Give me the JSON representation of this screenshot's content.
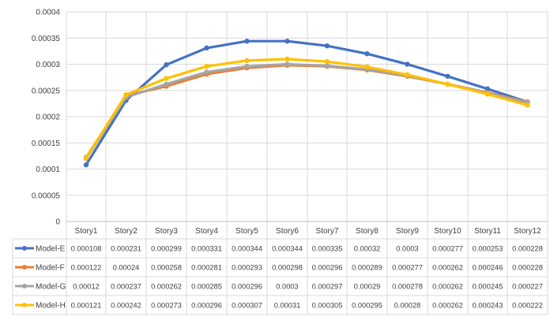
{
  "chart_data": {
    "type": "line",
    "title": "",
    "xlabel": "",
    "ylabel": "",
    "ylim": [
      0,
      0.0004
    ],
    "y_ticks": [
      "0",
      "0.00005",
      "0.0001",
      "0.00015",
      "0.0002",
      "0.00025",
      "0.0003",
      "0.00035",
      "0.0004"
    ],
    "grid": true,
    "legend": "data-table-left",
    "categories": [
      "Story1",
      "Story2",
      "Story3",
      "Story4",
      "Story5",
      "Story6",
      "Story7",
      "Story8",
      "Story9",
      "Story10",
      "Story11",
      "Story12"
    ],
    "series": [
      {
        "name": "Model-E",
        "color": "#4472C4",
        "values": [
          0.000108,
          0.000231,
          0.000299,
          0.000331,
          0.000344,
          0.000344,
          0.000335,
          0.00032,
          0.0003,
          0.000277,
          0.000253,
          0.000228
        ],
        "labels": [
          "0.000108",
          "0.000231",
          "0.000299",
          "0.000331",
          "0.000344",
          "0.000344",
          "0.000335",
          "0.00032",
          "0.0003",
          "0.000277",
          "0.000253",
          "0.000228"
        ]
      },
      {
        "name": "Model-F",
        "color": "#ED7D31",
        "values": [
          0.000122,
          0.00024,
          0.000258,
          0.000281,
          0.000293,
          0.000298,
          0.000296,
          0.000289,
          0.000277,
          0.000262,
          0.000246,
          0.000228
        ],
        "labels": [
          "0.000122",
          "0.00024",
          "0.000258",
          "0.000281",
          "0.000293",
          "0.000298",
          "0.000296",
          "0.000289",
          "0.000277",
          "0.000262",
          "0.000246",
          "0.000228"
        ]
      },
      {
        "name": "Model-G",
        "color": "#A5A5A5",
        "values": [
          0.00012,
          0.000237,
          0.000262,
          0.000285,
          0.000296,
          0.0003,
          0.000297,
          0.00029,
          0.000278,
          0.000262,
          0.000245,
          0.000227
        ],
        "labels": [
          "0.00012",
          "0.000237",
          "0.000262",
          "0.000285",
          "0.000296",
          "0.0003",
          "0.000297",
          "0.00029",
          "0.000278",
          "0.000262",
          "0.000245",
          "0.000227"
        ]
      },
      {
        "name": "Model-H",
        "color": "#FFC000",
        "values": [
          0.000121,
          0.000242,
          0.000273,
          0.000296,
          0.000307,
          0.00031,
          0.000305,
          0.000295,
          0.00028,
          0.000262,
          0.000243,
          0.000222
        ],
        "labels": [
          "0.000121",
          "0.000242",
          "0.000273",
          "0.000296",
          "0.000307",
          "0.00031",
          "0.000305",
          "0.000295",
          "0.00028",
          "0.000262",
          "0.000243",
          "0.000222"
        ]
      }
    ]
  }
}
